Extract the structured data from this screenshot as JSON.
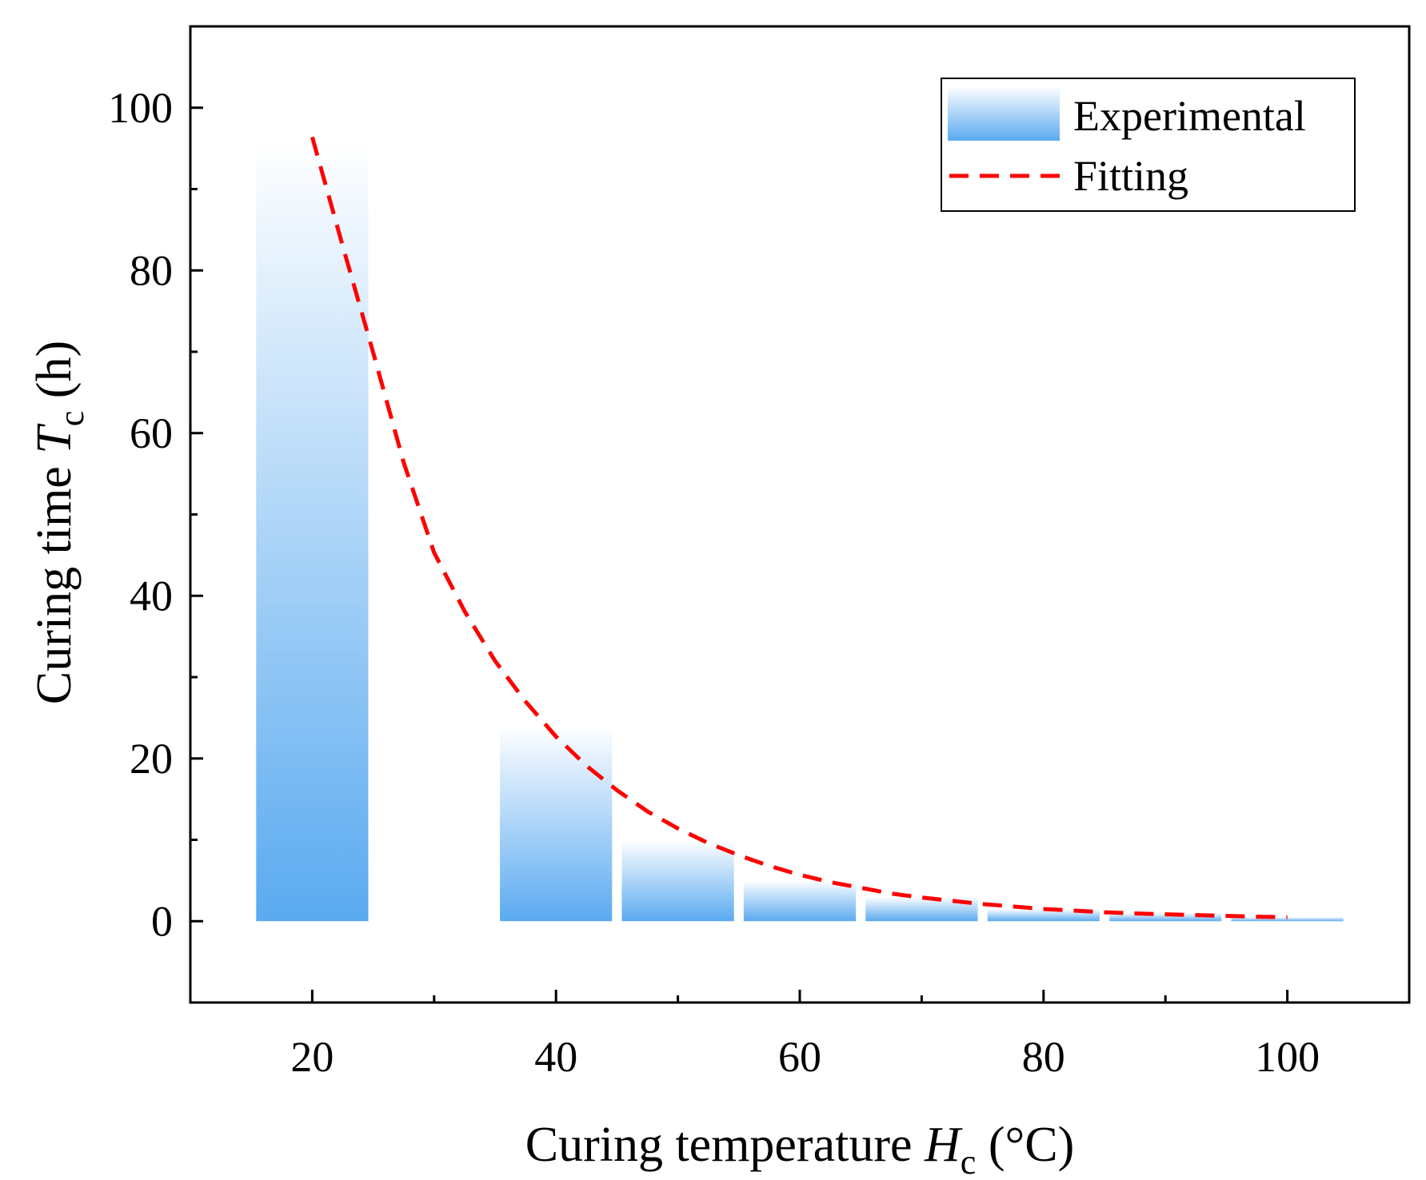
{
  "chart_data": {
    "type": "bar",
    "title": "",
    "xlabel": {
      "main": "Curing temperature ",
      "var": "H",
      "sub": "c",
      "unit": " (°C)"
    },
    "ylabel": {
      "main": "Curing time ",
      "var": "T",
      "sub": "c",
      "unit": " (h)"
    },
    "xlim": [
      10,
      110
    ],
    "ylim": [
      -10,
      110
    ],
    "xticks": [
      20,
      40,
      60,
      80,
      100
    ],
    "xticks_minor": [
      30,
      50,
      70,
      90
    ],
    "yticks": [
      0,
      20,
      40,
      60,
      80,
      100
    ],
    "yticks_minor": [
      10,
      30,
      50,
      70,
      90
    ],
    "grid": false,
    "legend_position": "top-right",
    "series": [
      {
        "name": "Experimental",
        "kind": "bar",
        "bar_width": 9.2,
        "x": [
          20,
          40,
          50,
          60,
          70,
          80,
          90,
          100
        ],
        "values": [
          96,
          24,
          10,
          5,
          3,
          1.5,
          1,
          0.5
        ],
        "gradient_top": "#ffffff",
        "gradient_bottom": "#5aaaf0"
      },
      {
        "name": "Fitting",
        "kind": "line",
        "style": "dashed",
        "color": "#ff0000",
        "x": [
          20,
          22.5,
          25,
          27.5,
          30,
          32.5,
          35,
          37.5,
          40,
          42.5,
          45,
          47.5,
          50,
          52.5,
          55,
          57.5,
          60,
          62.5,
          65,
          67.5,
          70,
          72.5,
          75,
          77.5,
          80,
          82.5,
          85,
          87.5,
          90,
          92.5,
          95,
          97.5,
          100
        ],
        "values": [
          96.4,
          83.0,
          69.9,
          56.4,
          45.3,
          38.1,
          32.0,
          27.0,
          22.7,
          19.1,
          16.1,
          13.5,
          11.4,
          9.6,
          8.1,
          6.8,
          5.7,
          4.8,
          4.1,
          3.4,
          2.9,
          2.5,
          2.1,
          1.8,
          1.5,
          1.3,
          1.1,
          0.95,
          0.85,
          0.75,
          0.65,
          0.55,
          0.5
        ]
      }
    ]
  }
}
